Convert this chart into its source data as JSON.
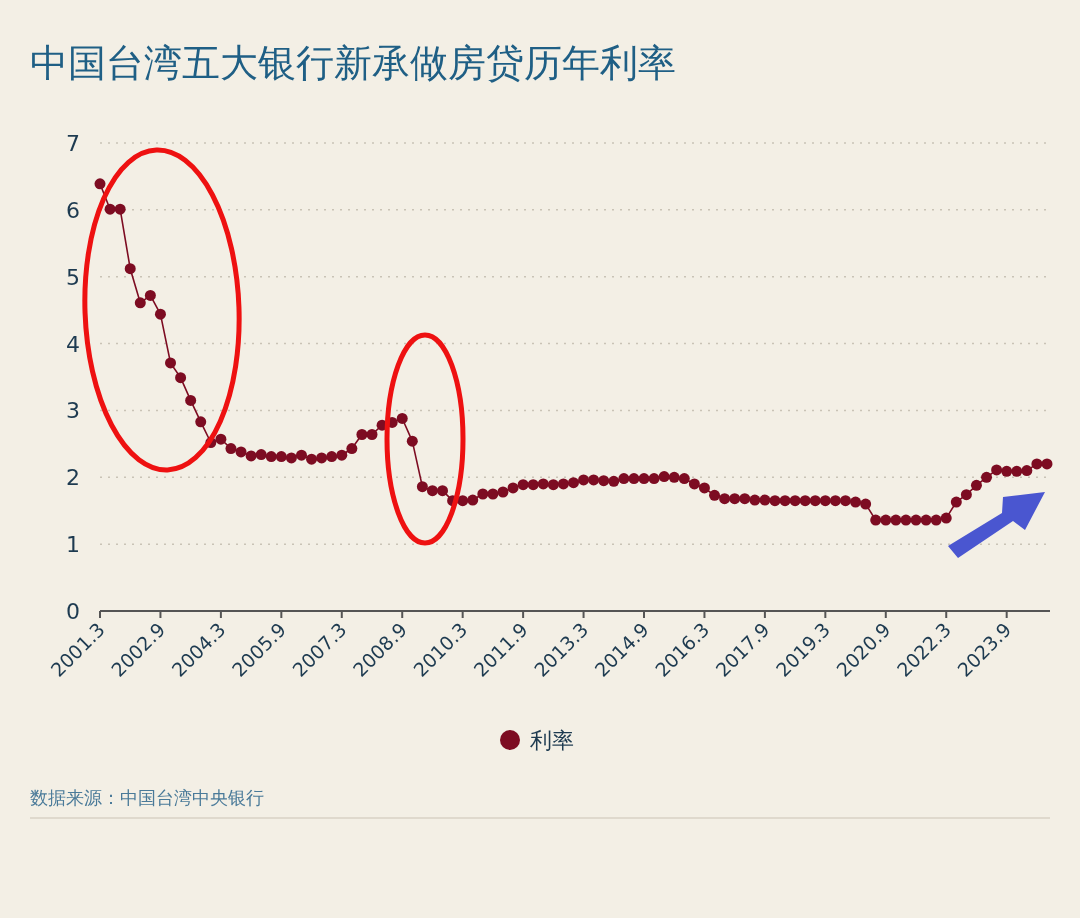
{
  "chart_data": {
    "type": "line",
    "title": "中国台湾五大银行新承做房贷历年利率",
    "categories": [
      "2001.3",
      null,
      null,
      null,
      null,
      null,
      "2002.9",
      null,
      null,
      null,
      null,
      null,
      "2004.3",
      null,
      null,
      null,
      null,
      null,
      "2005.9",
      null,
      null,
      null,
      null,
      null,
      "2007.3",
      null,
      null,
      null,
      null,
      null,
      "2008.9",
      null,
      null,
      null,
      null,
      null,
      "2010.3",
      null,
      null,
      null,
      null,
      null,
      "2011.9",
      null,
      null,
      null,
      null,
      null,
      "2013.3",
      null,
      null,
      null,
      null,
      null,
      "2014.9",
      null,
      null,
      null,
      null,
      null,
      "2016.3",
      null,
      null,
      null,
      null,
      null,
      "2017.9",
      null,
      null,
      null,
      null,
      null,
      "2019.3",
      null,
      null,
      null,
      null,
      null,
      "2020.9",
      null,
      null,
      null,
      null,
      null,
      "2022.3",
      null,
      null,
      null,
      null,
      null,
      "2023.9",
      null,
      null,
      null,
      null
    ],
    "series": [
      {
        "name": "利率",
        "color": "#7d0c22",
        "values": [
          6.39,
          6.01,
          6.01,
          5.12,
          4.61,
          4.72,
          4.44,
          3.71,
          3.49,
          3.15,
          2.83,
          2.52,
          2.57,
          2.43,
          2.38,
          2.32,
          2.34,
          2.31,
          2.31,
          2.29,
          2.33,
          2.27,
          2.29,
          2.31,
          2.33,
          2.43,
          2.64,
          2.64,
          2.78,
          2.82,
          2.88,
          2.54,
          1.86,
          1.8,
          1.8,
          1.65,
          1.65,
          1.66,
          1.75,
          1.75,
          1.78,
          1.84,
          1.89,
          1.89,
          1.9,
          1.89,
          1.9,
          1.92,
          1.96,
          1.96,
          1.95,
          1.94,
          1.98,
          1.98,
          1.98,
          1.98,
          2.01,
          2.0,
          1.98,
          1.9,
          1.84,
          1.73,
          1.68,
          1.68,
          1.68,
          1.66,
          1.66,
          1.65,
          1.65,
          1.65,
          1.65,
          1.65,
          1.65,
          1.65,
          1.65,
          1.63,
          1.6,
          1.36,
          1.36,
          1.36,
          1.36,
          1.36,
          1.36,
          1.36,
          1.39,
          1.63,
          1.74,
          1.88,
          2.0,
          2.11,
          2.09,
          2.09,
          2.1,
          2.2,
          2.2
        ]
      }
    ],
    "ylim": [
      0,
      7
    ],
    "yticks": [
      0,
      1,
      2,
      3,
      4,
      5,
      6,
      7
    ],
    "grid": "y",
    "legend": "bottom",
    "marker": "circle",
    "line_style": "solid",
    "annotations": [
      "数据来源：中国台湾中央银行"
    ]
  }
}
